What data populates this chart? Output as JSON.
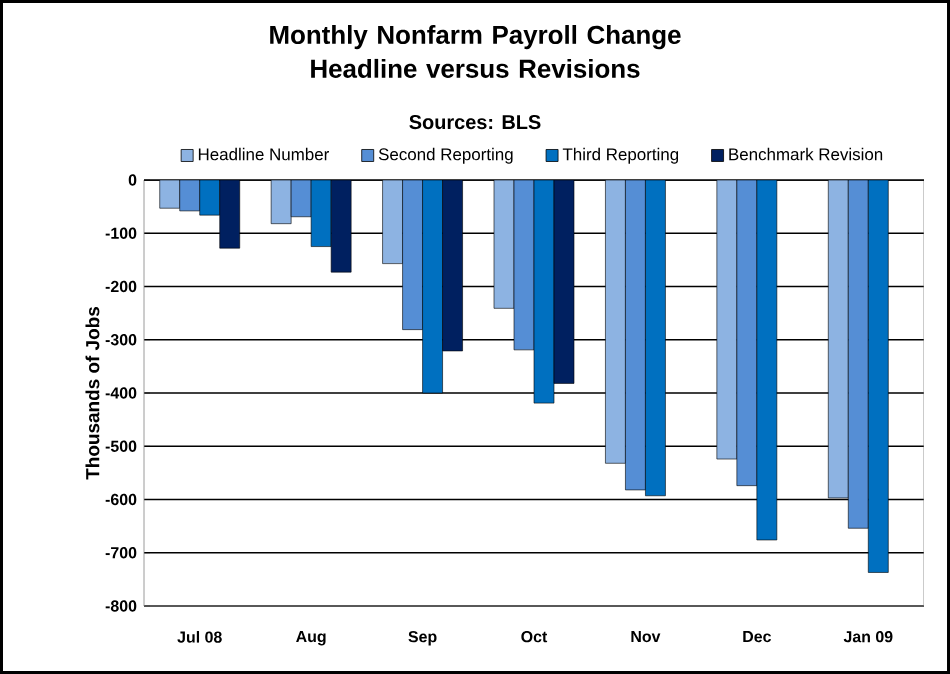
{
  "chart_data": {
    "type": "bar",
    "title": "Monthly Nonfarm Payroll Change Headline versus Revisions",
    "subtitle": "Sources: BLS",
    "ylabel": "Thousands of Jobs",
    "categories": [
      "Jul 08",
      "Aug",
      "Sep",
      "Oct",
      "Nov",
      "Dec",
      "Jan 09"
    ],
    "series": [
      {
        "name": "Headline Number",
        "color": "#8db3e2",
        "values": [
          -53,
          -82,
          -157,
          -241,
          -532,
          -524,
          -597
        ]
      },
      {
        "name": "Second Reporting",
        "color": "#558ed5",
        "values": [
          -58,
          -69,
          -281,
          -319,
          -582,
          -574,
          -654
        ]
      },
      {
        "name": "Third Reporting",
        "color": "#0070c0",
        "values": [
          -66,
          -125,
          -400,
          -419,
          -593,
          -676,
          -737
        ]
      },
      {
        "name": "Benchmark Revision",
        "color": "#002060",
        "values": [
          -128,
          -173,
          -321,
          -382,
          null,
          null,
          null
        ]
      }
    ],
    "ylim": [
      -800,
      0
    ],
    "yticks": [
      -800,
      -700,
      -600,
      -500,
      -400,
      -300,
      -200,
      -100,
      0
    ],
    "grid": "y",
    "legend": "top"
  }
}
